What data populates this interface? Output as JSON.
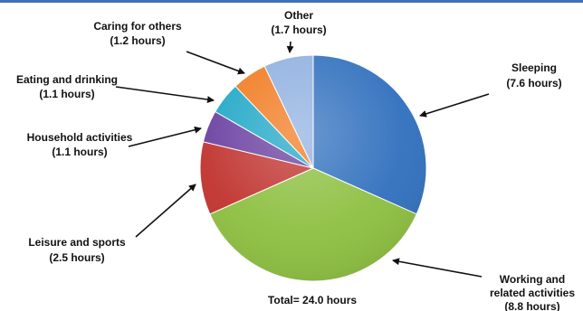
{
  "chart_data": {
    "type": "pie",
    "title": "",
    "total_label": "Total= 24.0 hours",
    "slices": [
      {
        "label": "Sleeping",
        "value": 7.6,
        "value_label": "(7.6 hours)",
        "color": "#2f6fbd"
      },
      {
        "label": "Working and related activities",
        "value": 8.8,
        "value_label": "(8.8 hours)",
        "color": "#8cbf3f"
      },
      {
        "label": "Leisure and sports",
        "value": 2.5,
        "value_label": "(2.5 hours)",
        "color": "#c0322e"
      },
      {
        "label": "Household activities",
        "value": 1.1,
        "value_label": "(1.1 hours)",
        "color": "#6a3fa0"
      },
      {
        "label": "Eating and drinking",
        "value": 1.1,
        "value_label": "(1.1 hours)",
        "color": "#1fa7c7"
      },
      {
        "label": "Caring for others",
        "value": 1.2,
        "value_label": "(1.2 hours)",
        "color": "#f07a1f"
      },
      {
        "label": "Other",
        "value": 1.7,
        "value_label": "(1.7 hours)",
        "color": "#8fb0e0"
      }
    ],
    "legend": "none"
  }
}
